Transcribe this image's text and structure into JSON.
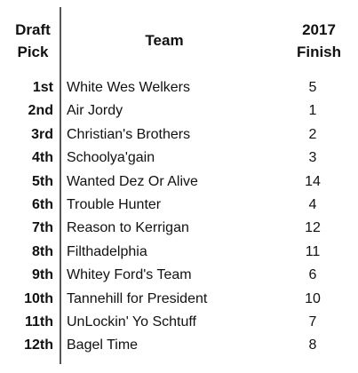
{
  "headers": {
    "pick_line1": "Draft",
    "pick_line2": "Pick",
    "team": "Team",
    "finish_line1": "2017",
    "finish_line2": "Finish"
  },
  "rows": [
    {
      "pick": "1st",
      "team": "White Wes Welkers",
      "finish": "5"
    },
    {
      "pick": "2nd",
      "team": "Air Jordy",
      "finish": "1"
    },
    {
      "pick": "3rd",
      "team": "Christian's Brothers",
      "finish": "2"
    },
    {
      "pick": "4th",
      "team": "Schoolya'gain",
      "finish": "3"
    },
    {
      "pick": "5th",
      "team": "Wanted Dez Or Alive",
      "finish": "14"
    },
    {
      "pick": "6th",
      "team": "Trouble Hunter",
      "finish": "4"
    },
    {
      "pick": "7th",
      "team": "Reason to Kerrigan",
      "finish": "12"
    },
    {
      "pick": "8th",
      "team": "Filthadelphia",
      "finish": "11"
    },
    {
      "pick": "9th",
      "team": "Whitey Ford's Team",
      "finish": "6"
    },
    {
      "pick": "10th",
      "team": "Tannehill for President",
      "finish": "10"
    },
    {
      "pick": "11th",
      "team": "UnLockin' Yo Schtuff",
      "finish": "7"
    },
    {
      "pick": "12th",
      "team": "Bagel Time",
      "finish": "8"
    }
  ]
}
